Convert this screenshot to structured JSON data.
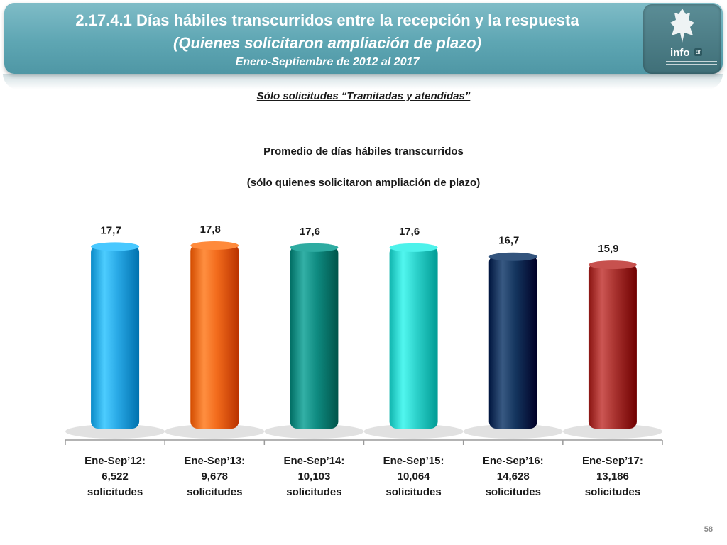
{
  "header": {
    "title": "2.17.4.1 Días hábiles transcurridos entre la recepción y la respuesta",
    "subtitle": "(Quienes solicitaron ampliación de plazo)",
    "period": "Enero-Septiembre de 2012 al 2017",
    "logo_text": "info",
    "logo_tag": "df"
  },
  "note": "Sólo solicitudes “Tramitadas y atendidas”",
  "page_number": "58",
  "chart_data": {
    "type": "bar",
    "title": "Promedio de días hábiles transcurridos",
    "subtitle": "(sólo quienes solicitaron ampliación de plazo)",
    "xlabel": "",
    "ylabel": "",
    "ylim": [
      0,
      17.8
    ],
    "grid": false,
    "legend": "none",
    "categories": [
      [
        "Ene-Sep’12:",
        "6,522",
        "solicitudes"
      ],
      [
        "Ene-Sep’13:",
        "9,678",
        "solicitudes"
      ],
      [
        "Ene-Sep’14:",
        "10,103",
        "solicitudes"
      ],
      [
        "Ene-Sep’15:",
        "10,064",
        "solicitudes"
      ],
      [
        "Ene-Sep’16:",
        "14,628",
        "solicitudes"
      ],
      [
        "Ene-Sep’17:",
        "13,186",
        "solicitudes"
      ]
    ],
    "values": [
      17.7,
      17.8,
      17.6,
      17.6,
      16.7,
      15.9
    ],
    "value_labels": [
      "17,7",
      "17,8",
      "17,6",
      "17,6",
      "16,7",
      "15,9"
    ],
    "colors": [
      "#29a9e6",
      "#f26b1c",
      "#0f8c82",
      "#2ed3cc",
      "#14355e",
      "#a8322f"
    ]
  }
}
